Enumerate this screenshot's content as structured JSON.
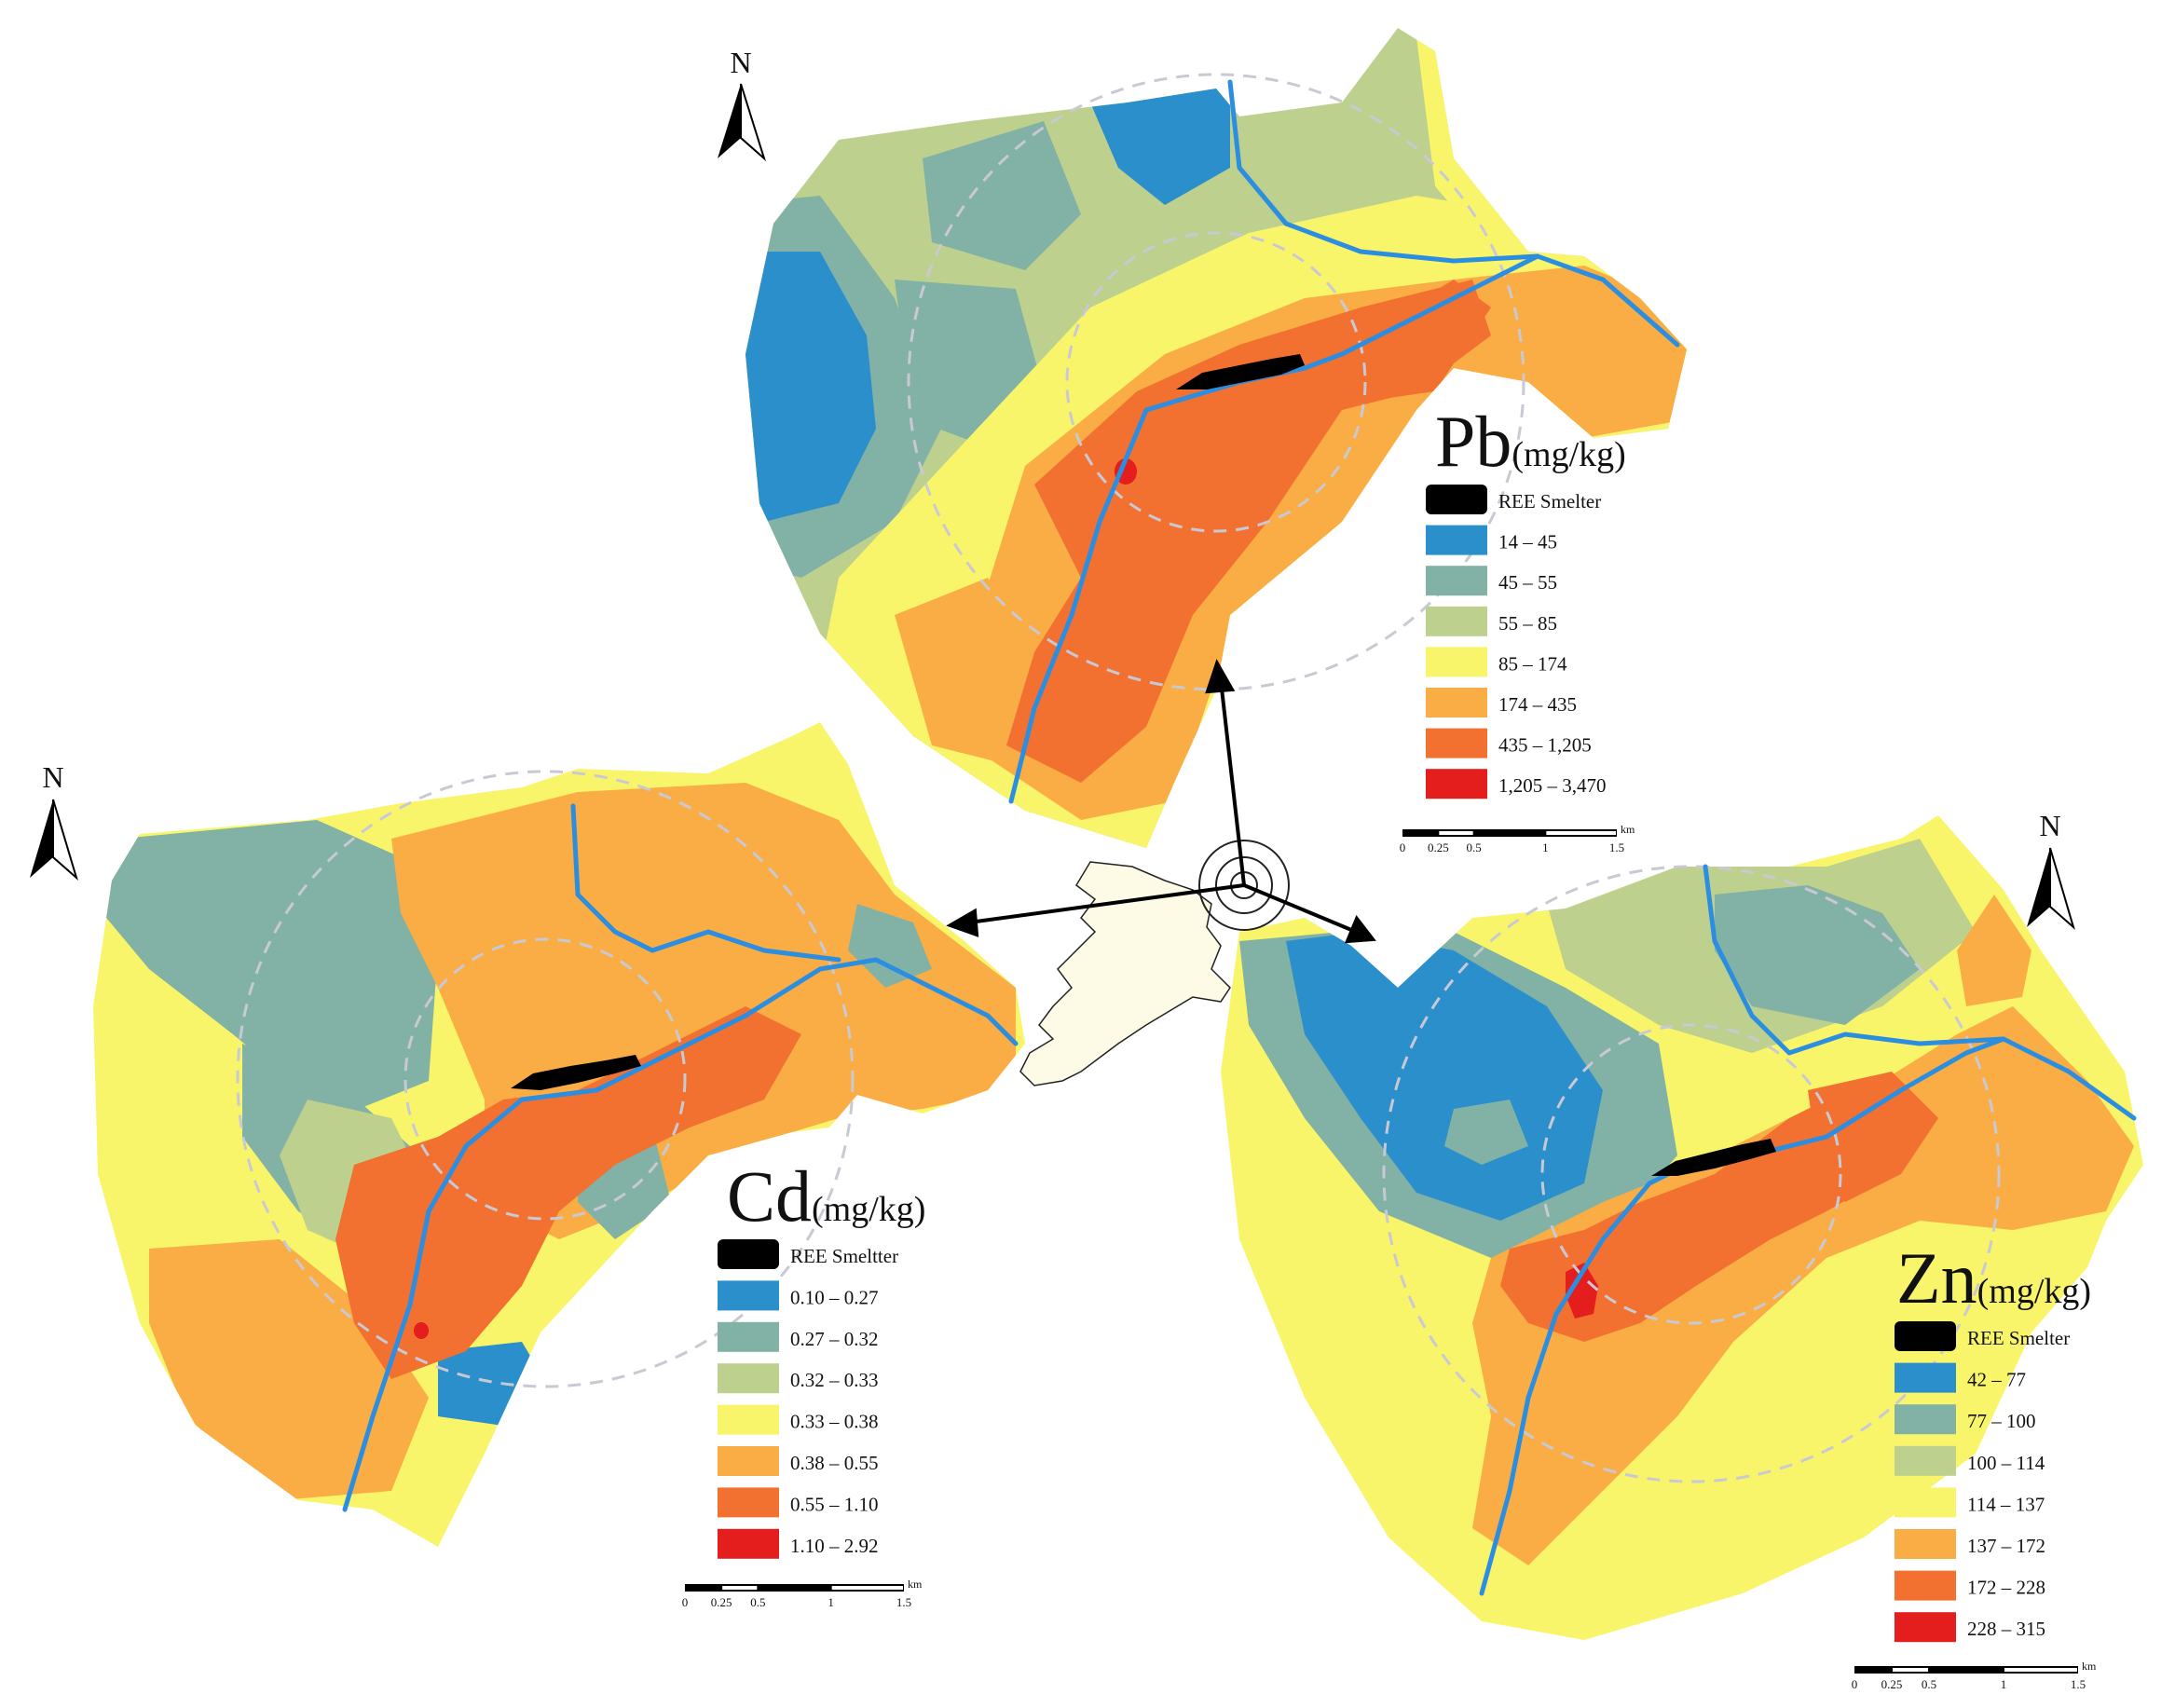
{
  "north_label": "N",
  "colors": {
    "smelter": "#000000",
    "river": "#2b8ee0",
    "ring": "#c9c9d4",
    "classes": [
      "#2b8fcc",
      "#82b1a6",
      "#bdd08e",
      "#f8f56b",
      "#f9ad44",
      "#f27131",
      "#e41d1d"
    ]
  },
  "maps": [
    {
      "id": "pb",
      "element": "Pb",
      "unit": "(mg/kg)",
      "legend": [
        {
          "label": "REE Smelter",
          "class": "smelter"
        },
        {
          "label": "14 – 45",
          "class": 0
        },
        {
          "label": "45 – 55",
          "class": 1
        },
        {
          "label": "55 – 85",
          "class": 2
        },
        {
          "label": "85 – 174",
          "class": 3
        },
        {
          "label": "174 – 435",
          "class": 4
        },
        {
          "label": "435 – 1,205",
          "class": 5
        },
        {
          "label": "1,205 – 3,470",
          "class": 6
        }
      ],
      "scalebar": {
        "ticks": [
          "0",
          "0.25",
          "0.5",
          "1",
          "1.5"
        ],
        "unit": "km"
      }
    },
    {
      "id": "cd",
      "element": "Cd",
      "unit": "(mg/kg)",
      "legend": [
        {
          "label": "REE Smeltter",
          "class": "smelter"
        },
        {
          "label": "0.10 – 0.27",
          "class": 0
        },
        {
          "label": "0.27 – 0.32",
          "class": 1
        },
        {
          "label": "0.32 – 0.33",
          "class": 2
        },
        {
          "label": "0.33 – 0.38",
          "class": 3
        },
        {
          "label": "0.38 – 0.55",
          "class": 4
        },
        {
          "label": "0.55 – 1.10",
          "class": 5
        },
        {
          "label": "1.10 – 2.92",
          "class": 6
        }
      ],
      "scalebar": {
        "ticks": [
          "0",
          "0.25",
          "0.5",
          "1",
          "1.5"
        ],
        "unit": "km"
      }
    },
    {
      "id": "zn",
      "element": "Zn",
      "unit": "(mg/kg)",
      "legend": [
        {
          "label": "REE Smelter",
          "class": "smelter"
        },
        {
          "label": "42 – 77",
          "class": 0
        },
        {
          "label": "77 – 100",
          "class": 1
        },
        {
          "label": "100 – 114",
          "class": 2
        },
        {
          "label": "114 – 137",
          "class": 3
        },
        {
          "label": "137 – 172",
          "class": 4
        },
        {
          "label": "172 – 228",
          "class": 5
        },
        {
          "label": "228 – 315",
          "class": 6
        }
      ],
      "scalebar": {
        "ticks": [
          "0",
          "0.25",
          "0.5",
          "1",
          "1.5"
        ],
        "unit": "km"
      }
    }
  ]
}
